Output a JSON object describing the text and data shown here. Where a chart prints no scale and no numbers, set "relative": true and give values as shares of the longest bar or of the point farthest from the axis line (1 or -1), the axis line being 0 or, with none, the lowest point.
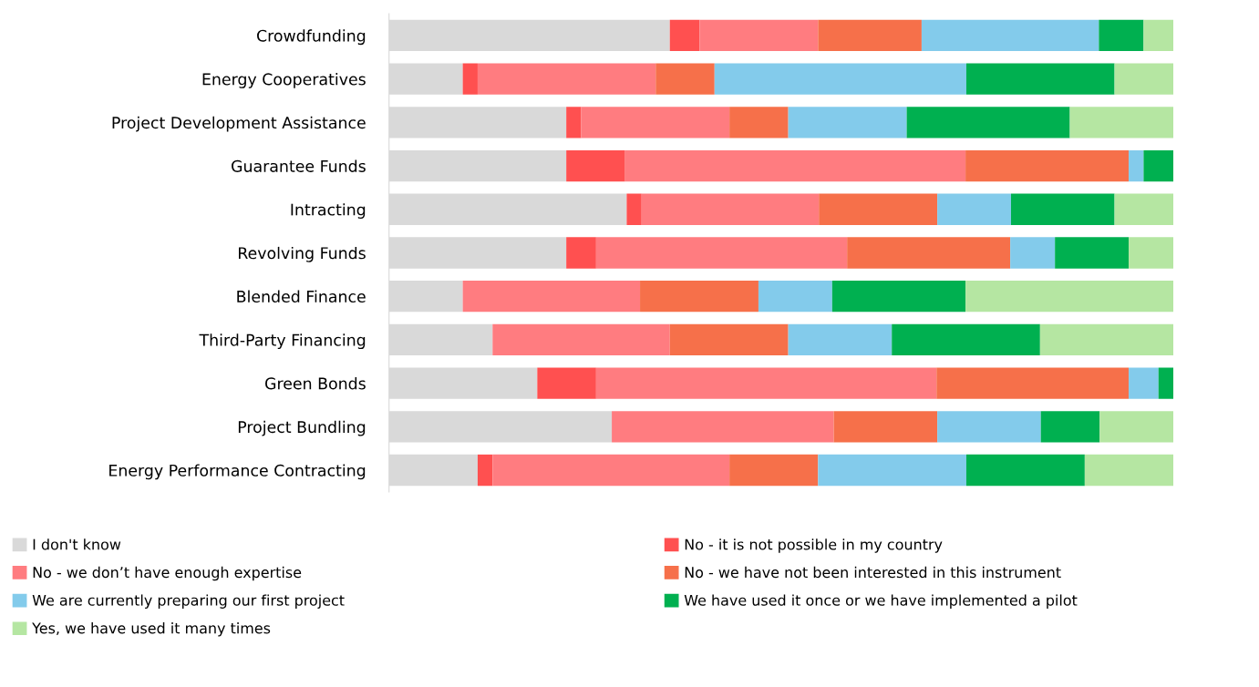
{
  "chart_data": {
    "type": "bar",
    "orientation": "horizontal",
    "stacked": true,
    "relative": true,
    "legend": "bottom",
    "grid": false,
    "tick_labels": "y",
    "categories": [
      "Crowdfunding",
      "Energy Cooperatives",
      "Project Development Assistance",
      "Guarantee Funds",
      "Intracting",
      "Revolving Funds",
      "Blended Finance",
      "Third-Party Financing",
      "Green Bonds",
      "Project Bundling",
      "Energy Performance Contracting"
    ],
    "series": [
      {
        "name": "I don't know",
        "color": "#d9d9d9",
        "values": [
          0.358,
          0.094,
          0.226,
          0.226,
          0.303,
          0.226,
          0.094,
          0.132,
          0.189,
          0.284,
          0.113
        ]
      },
      {
        "name": "No - it is not possible in my country",
        "color": "#ff5050",
        "values": [
          0.038,
          0.019,
          0.019,
          0.075,
          0.019,
          0.038,
          0,
          0,
          0.075,
          0,
          0.019
        ]
      },
      {
        "name": "No - we don’t have enough expertise",
        "color": "#ff7c80",
        "values": [
          0.151,
          0.227,
          0.189,
          0.434,
          0.226,
          0.32,
          0.226,
          0.226,
          0.434,
          0.283,
          0.302
        ]
      },
      {
        "name": "No - we have not been interested in this instrument",
        "color": "#f6704a",
        "values": [
          0.132,
          0.075,
          0.075,
          0.208,
          0.151,
          0.208,
          0.151,
          0.151,
          0.245,
          0.132,
          0.113
        ]
      },
      {
        "name": "We are currently preparing our first project",
        "color": "#83cbeb",
        "values": [
          0.226,
          0.321,
          0.151,
          0.019,
          0.094,
          0.057,
          0.094,
          0.132,
          0.038,
          0.132,
          0.189
        ]
      },
      {
        "name": "We have used it once or we have implemented a pilot",
        "color": "#00b050",
        "values": [
          0.057,
          0.189,
          0.208,
          0.038,
          0.132,
          0.094,
          0.17,
          0.189,
          0.019,
          0.075,
          0.151
        ]
      },
      {
        "name": "Yes, we have used it many times",
        "color": "#b5e6a2",
        "values": [
          0.038,
          0.075,
          0.132,
          0,
          0.075,
          0.057,
          0.265,
          0.17,
          0,
          0.094,
          0.113
        ]
      }
    ]
  }
}
